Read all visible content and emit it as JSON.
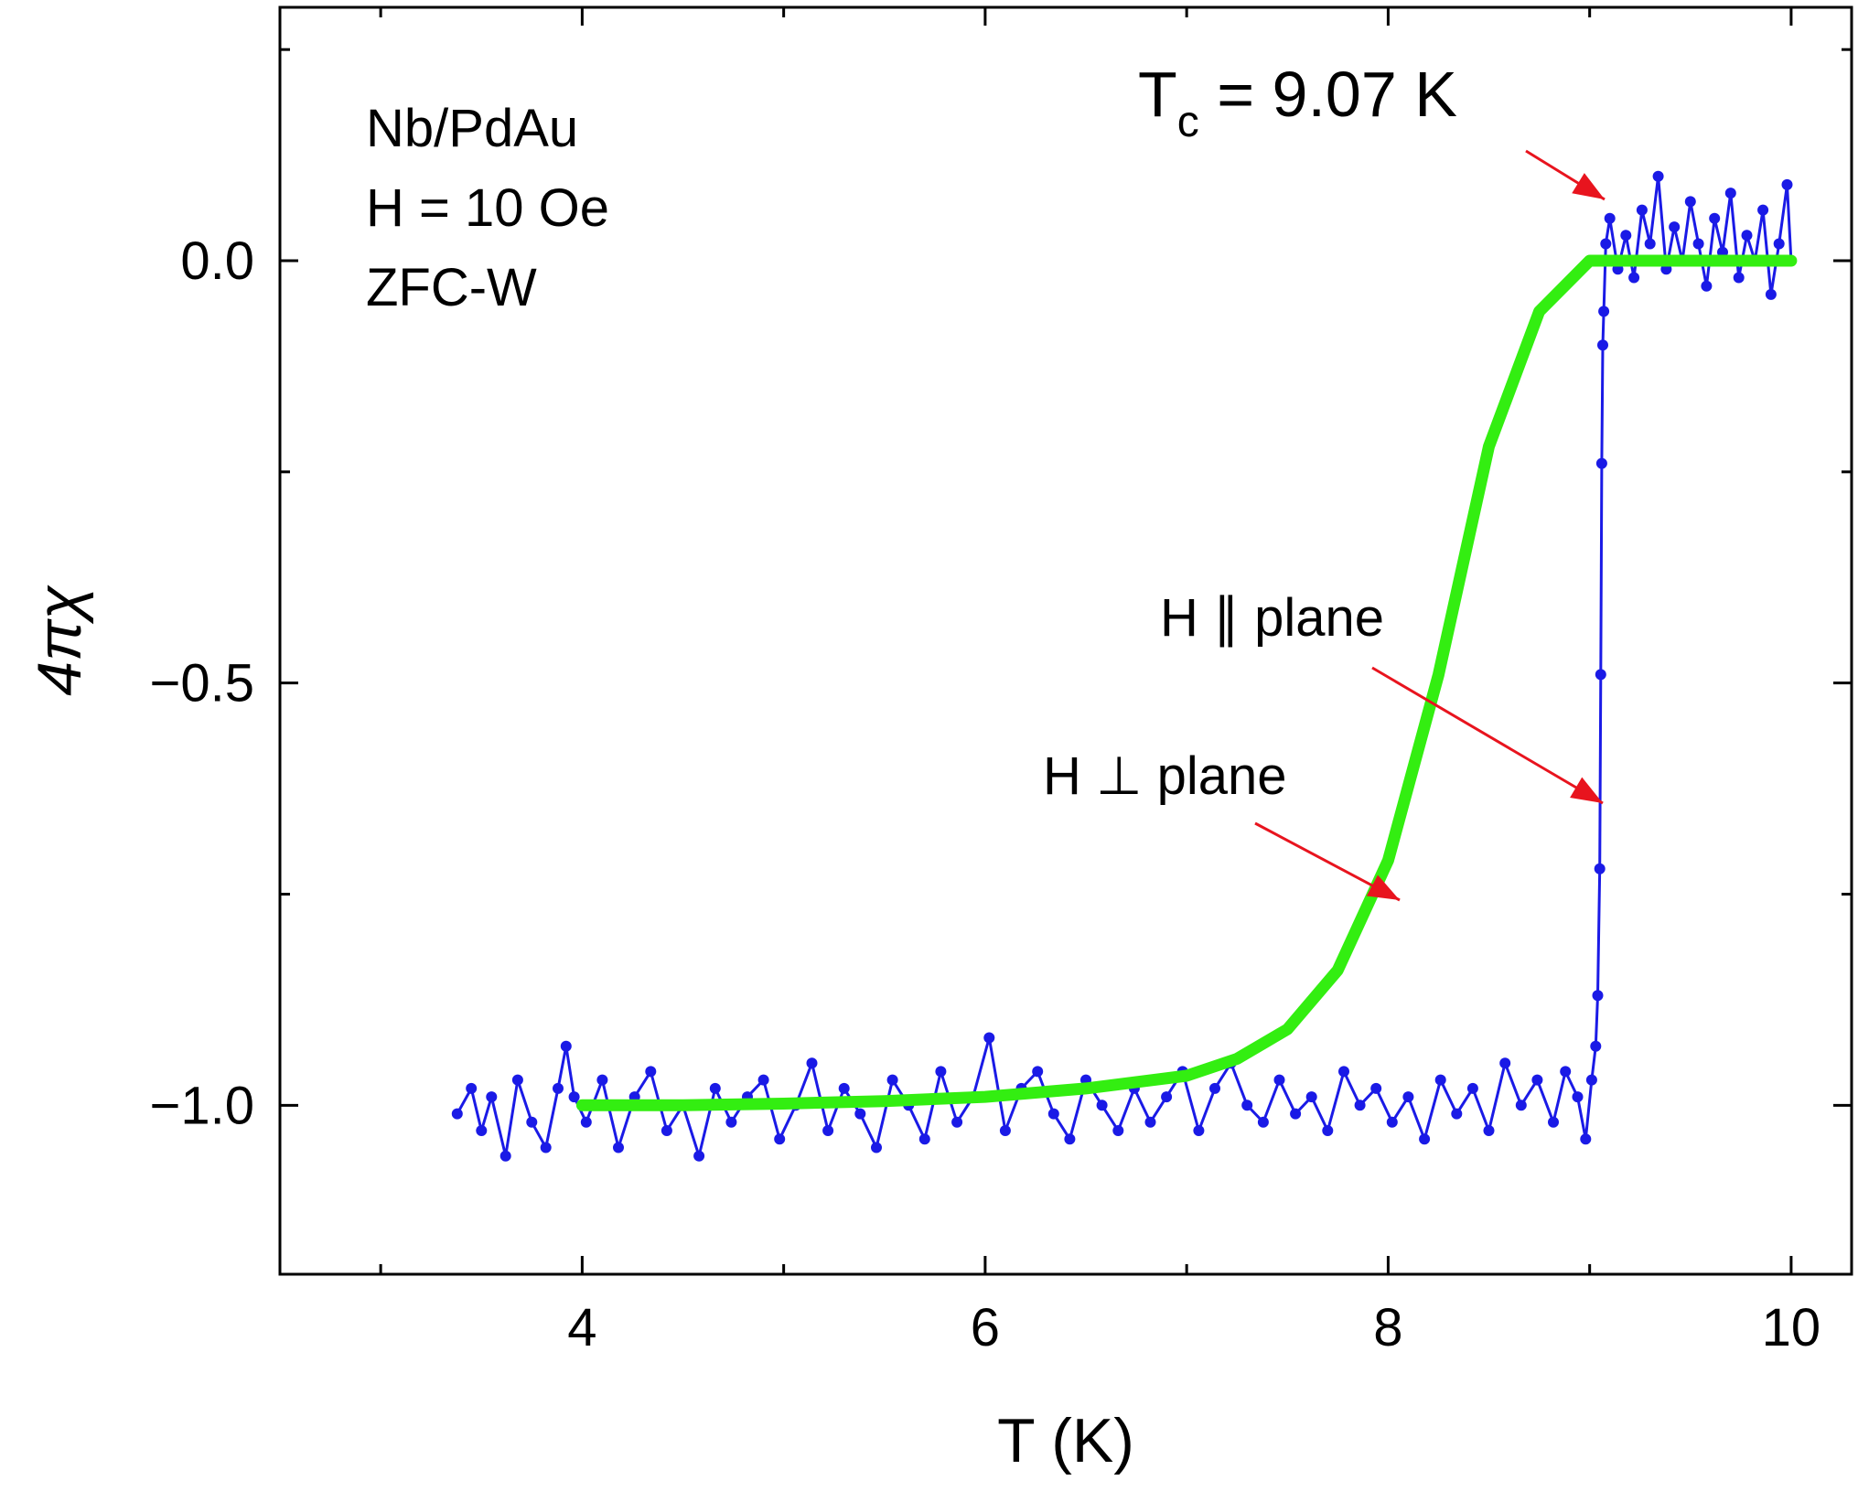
{
  "chart_data": {
    "type": "line",
    "title": "",
    "xlabel": "T (K)",
    "ylabel": "4πχ",
    "xlim": [
      2.5,
      10.3
    ],
    "ylim": [
      -1.2,
      0.3
    ],
    "xticks": [
      4,
      6,
      8,
      10
    ],
    "xtick_labels": [
      "4",
      "6",
      "8",
      "10"
    ],
    "yticks": [
      -1.0,
      -0.5,
      0.0
    ],
    "ytick_labels": [
      "−1.0",
      "−0.5",
      "0.0"
    ],
    "grid": false,
    "sample_info": [
      "Nb/PdAu",
      "H = 10 Oe",
      "ZFC-W"
    ],
    "tc_annotation": {
      "label": "Tc = 9.07 K",
      "main": "T",
      "sub": "c",
      "rest": " = 9.07 K",
      "points_to": {
        "x": 9.07,
        "y": 0.05
      }
    },
    "series": [
      {
        "name": "H ∥ plane",
        "color": "#1a1ae6",
        "marker": "circle",
        "x": [
          3.38,
          3.45,
          3.5,
          3.55,
          3.62,
          3.68,
          3.75,
          3.82,
          3.88,
          3.92,
          3.96,
          4.02,
          4.1,
          4.18,
          4.26,
          4.34,
          4.42,
          4.5,
          4.58,
          4.66,
          4.74,
          4.82,
          4.9,
          4.98,
          5.06,
          5.14,
          5.22,
          5.3,
          5.38,
          5.46,
          5.54,
          5.62,
          5.7,
          5.78,
          5.86,
          5.94,
          6.02,
          6.1,
          6.18,
          6.26,
          6.34,
          6.42,
          6.5,
          6.58,
          6.66,
          6.74,
          6.82,
          6.9,
          6.98,
          7.06,
          7.14,
          7.22,
          7.3,
          7.38,
          7.46,
          7.54,
          7.62,
          7.7,
          7.78,
          7.86,
          7.94,
          8.02,
          8.1,
          8.18,
          8.26,
          8.34,
          8.42,
          8.5,
          8.58,
          8.66,
          8.74,
          8.82,
          8.88,
          8.94,
          8.98,
          9.01,
          9.03,
          9.04,
          9.05,
          9.055,
          9.06,
          9.065,
          9.07,
          9.08,
          9.1,
          9.14,
          9.18,
          9.22,
          9.26,
          9.3,
          9.34,
          9.38,
          9.42,
          9.46,
          9.5,
          9.54,
          9.58,
          9.62,
          9.66,
          9.7,
          9.74,
          9.78,
          9.82,
          9.86,
          9.9,
          9.94,
          9.98,
          10.0
        ],
        "y": [
          -1.01,
          -0.98,
          -1.03,
          -0.99,
          -1.06,
          -0.97,
          -1.02,
          -1.05,
          -0.98,
          -0.93,
          -0.99,
          -1.02,
          -0.97,
          -1.05,
          -0.99,
          -0.96,
          -1.03,
          -1.0,
          -1.06,
          -0.98,
          -1.02,
          -0.99,
          -0.97,
          -1.04,
          -1.0,
          -0.95,
          -1.03,
          -0.98,
          -1.01,
          -1.05,
          -0.97,
          -1.0,
          -1.04,
          -0.96,
          -1.02,
          -0.99,
          -0.92,
          -1.03,
          -0.98,
          -0.96,
          -1.01,
          -1.04,
          -0.97,
          -1.0,
          -1.03,
          -0.98,
          -1.02,
          -0.99,
          -0.96,
          -1.03,
          -0.98,
          -0.95,
          -1.0,
          -1.02,
          -0.97,
          -1.01,
          -0.99,
          -1.03,
          -0.96,
          -1.0,
          -0.98,
          -1.02,
          -0.99,
          -1.04,
          -0.97,
          -1.01,
          -0.98,
          -1.03,
          -0.95,
          -1.0,
          -0.97,
          -1.02,
          -0.96,
          -0.99,
          -1.04,
          -0.97,
          -0.93,
          -0.87,
          -0.72,
          -0.49,
          -0.24,
          -0.1,
          -0.06,
          0.02,
          0.05,
          -0.01,
          0.03,
          -0.02,
          0.06,
          0.02,
          0.1,
          -0.01,
          0.04,
          0.0,
          0.07,
          0.02,
          -0.03,
          0.05,
          0.01,
          0.08,
          -0.02,
          0.03,
          0.0,
          0.06,
          -0.04,
          0.02,
          0.09,
          0.0
        ],
        "label_text": "H ∥ plane"
      },
      {
        "name": "H ⊥ plane",
        "color": "#33ee11",
        "marker": "none",
        "x": [
          4.0,
          4.5,
          5.0,
          5.5,
          6.0,
          6.5,
          7.0,
          7.25,
          7.5,
          7.75,
          8.0,
          8.25,
          8.5,
          8.75,
          9.0,
          9.2,
          9.5,
          10.0
        ],
        "y": [
          -1.0,
          -1.0,
          -0.998,
          -0.995,
          -0.99,
          -0.98,
          -0.965,
          -0.945,
          -0.91,
          -0.84,
          -0.71,
          -0.49,
          -0.22,
          -0.06,
          0.0,
          0.0,
          0.0,
          0.0
        ],
        "label_text": "H ⊥ plane"
      }
    ]
  }
}
